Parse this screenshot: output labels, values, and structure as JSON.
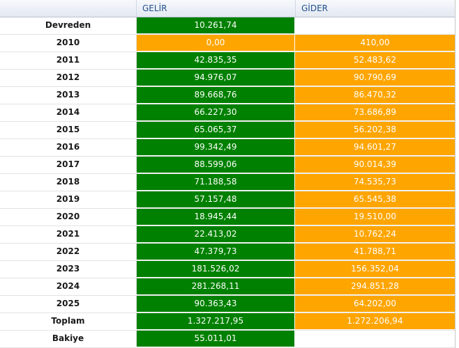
{
  "colors": {
    "green": "#008000",
    "orange": "#ffa500",
    "header_text": "#1f4e8c"
  },
  "header": {
    "label": "",
    "gelir": "GELİR",
    "gider": "GİDER"
  },
  "rows": [
    {
      "label": "Devreden",
      "gelir": "10.261,74",
      "gider": "",
      "gelir_color": "green",
      "gider_color": "white"
    },
    {
      "label": "2010",
      "gelir": "0,00",
      "gider": "410,00",
      "gelir_color": "orange",
      "gider_color": "orange"
    },
    {
      "label": "2011",
      "gelir": "42.835,35",
      "gider": "52.483,62",
      "gelir_color": "green",
      "gider_color": "orange"
    },
    {
      "label": "2012",
      "gelir": "94.976,07",
      "gider": "90.790,69",
      "gelir_color": "green",
      "gider_color": "orange"
    },
    {
      "label": "2013",
      "gelir": "89.668,76",
      "gider": "86.470,32",
      "gelir_color": "green",
      "gider_color": "orange"
    },
    {
      "label": "2014",
      "gelir": "66.227,30",
      "gider": "73.686,89",
      "gelir_color": "green",
      "gider_color": "orange"
    },
    {
      "label": "2015",
      "gelir": "65.065,37",
      "gider": "56.202,38",
      "gelir_color": "green",
      "gider_color": "orange"
    },
    {
      "label": "2016",
      "gelir": "99.342,49",
      "gider": "94.601,27",
      "gelir_color": "green",
      "gider_color": "orange"
    },
    {
      "label": "2017",
      "gelir": "88.599,06",
      "gider": "90.014,39",
      "gelir_color": "green",
      "gider_color": "orange"
    },
    {
      "label": "2018",
      "gelir": "71.188,58",
      "gider": "74.535,73",
      "gelir_color": "green",
      "gider_color": "orange"
    },
    {
      "label": "2019",
      "gelir": "57.157,48",
      "gider": "65.545,38",
      "gelir_color": "green",
      "gider_color": "orange"
    },
    {
      "label": "2020",
      "gelir": "18.945,44",
      "gider": "19.510,00",
      "gelir_color": "green",
      "gider_color": "orange"
    },
    {
      "label": "2021",
      "gelir": "22.413,02",
      "gider": "10.762,24",
      "gelir_color": "green",
      "gider_color": "orange"
    },
    {
      "label": "2022",
      "gelir": "47.379,73",
      "gider": "41.788,71",
      "gelir_color": "green",
      "gider_color": "orange"
    },
    {
      "label": "2023",
      "gelir": "181.526,02",
      "gider": "156.352,04",
      "gelir_color": "green",
      "gider_color": "orange"
    },
    {
      "label": "2024",
      "gelir": "281.268,11",
      "gider": "294.851,28",
      "gelir_color": "green",
      "gider_color": "orange"
    },
    {
      "label": "2025",
      "gelir": "90.363,43",
      "gider": "64.202,00",
      "gelir_color": "green",
      "gider_color": "orange"
    },
    {
      "label": "Toplam",
      "gelir": "1.327.217,95",
      "gider": "1.272.206,94",
      "gelir_color": "green",
      "gider_color": "orange"
    },
    {
      "label": "Bakiye",
      "gelir": "55.011,01",
      "gider": "",
      "gelir_color": "green",
      "gider_color": "white"
    }
  ]
}
